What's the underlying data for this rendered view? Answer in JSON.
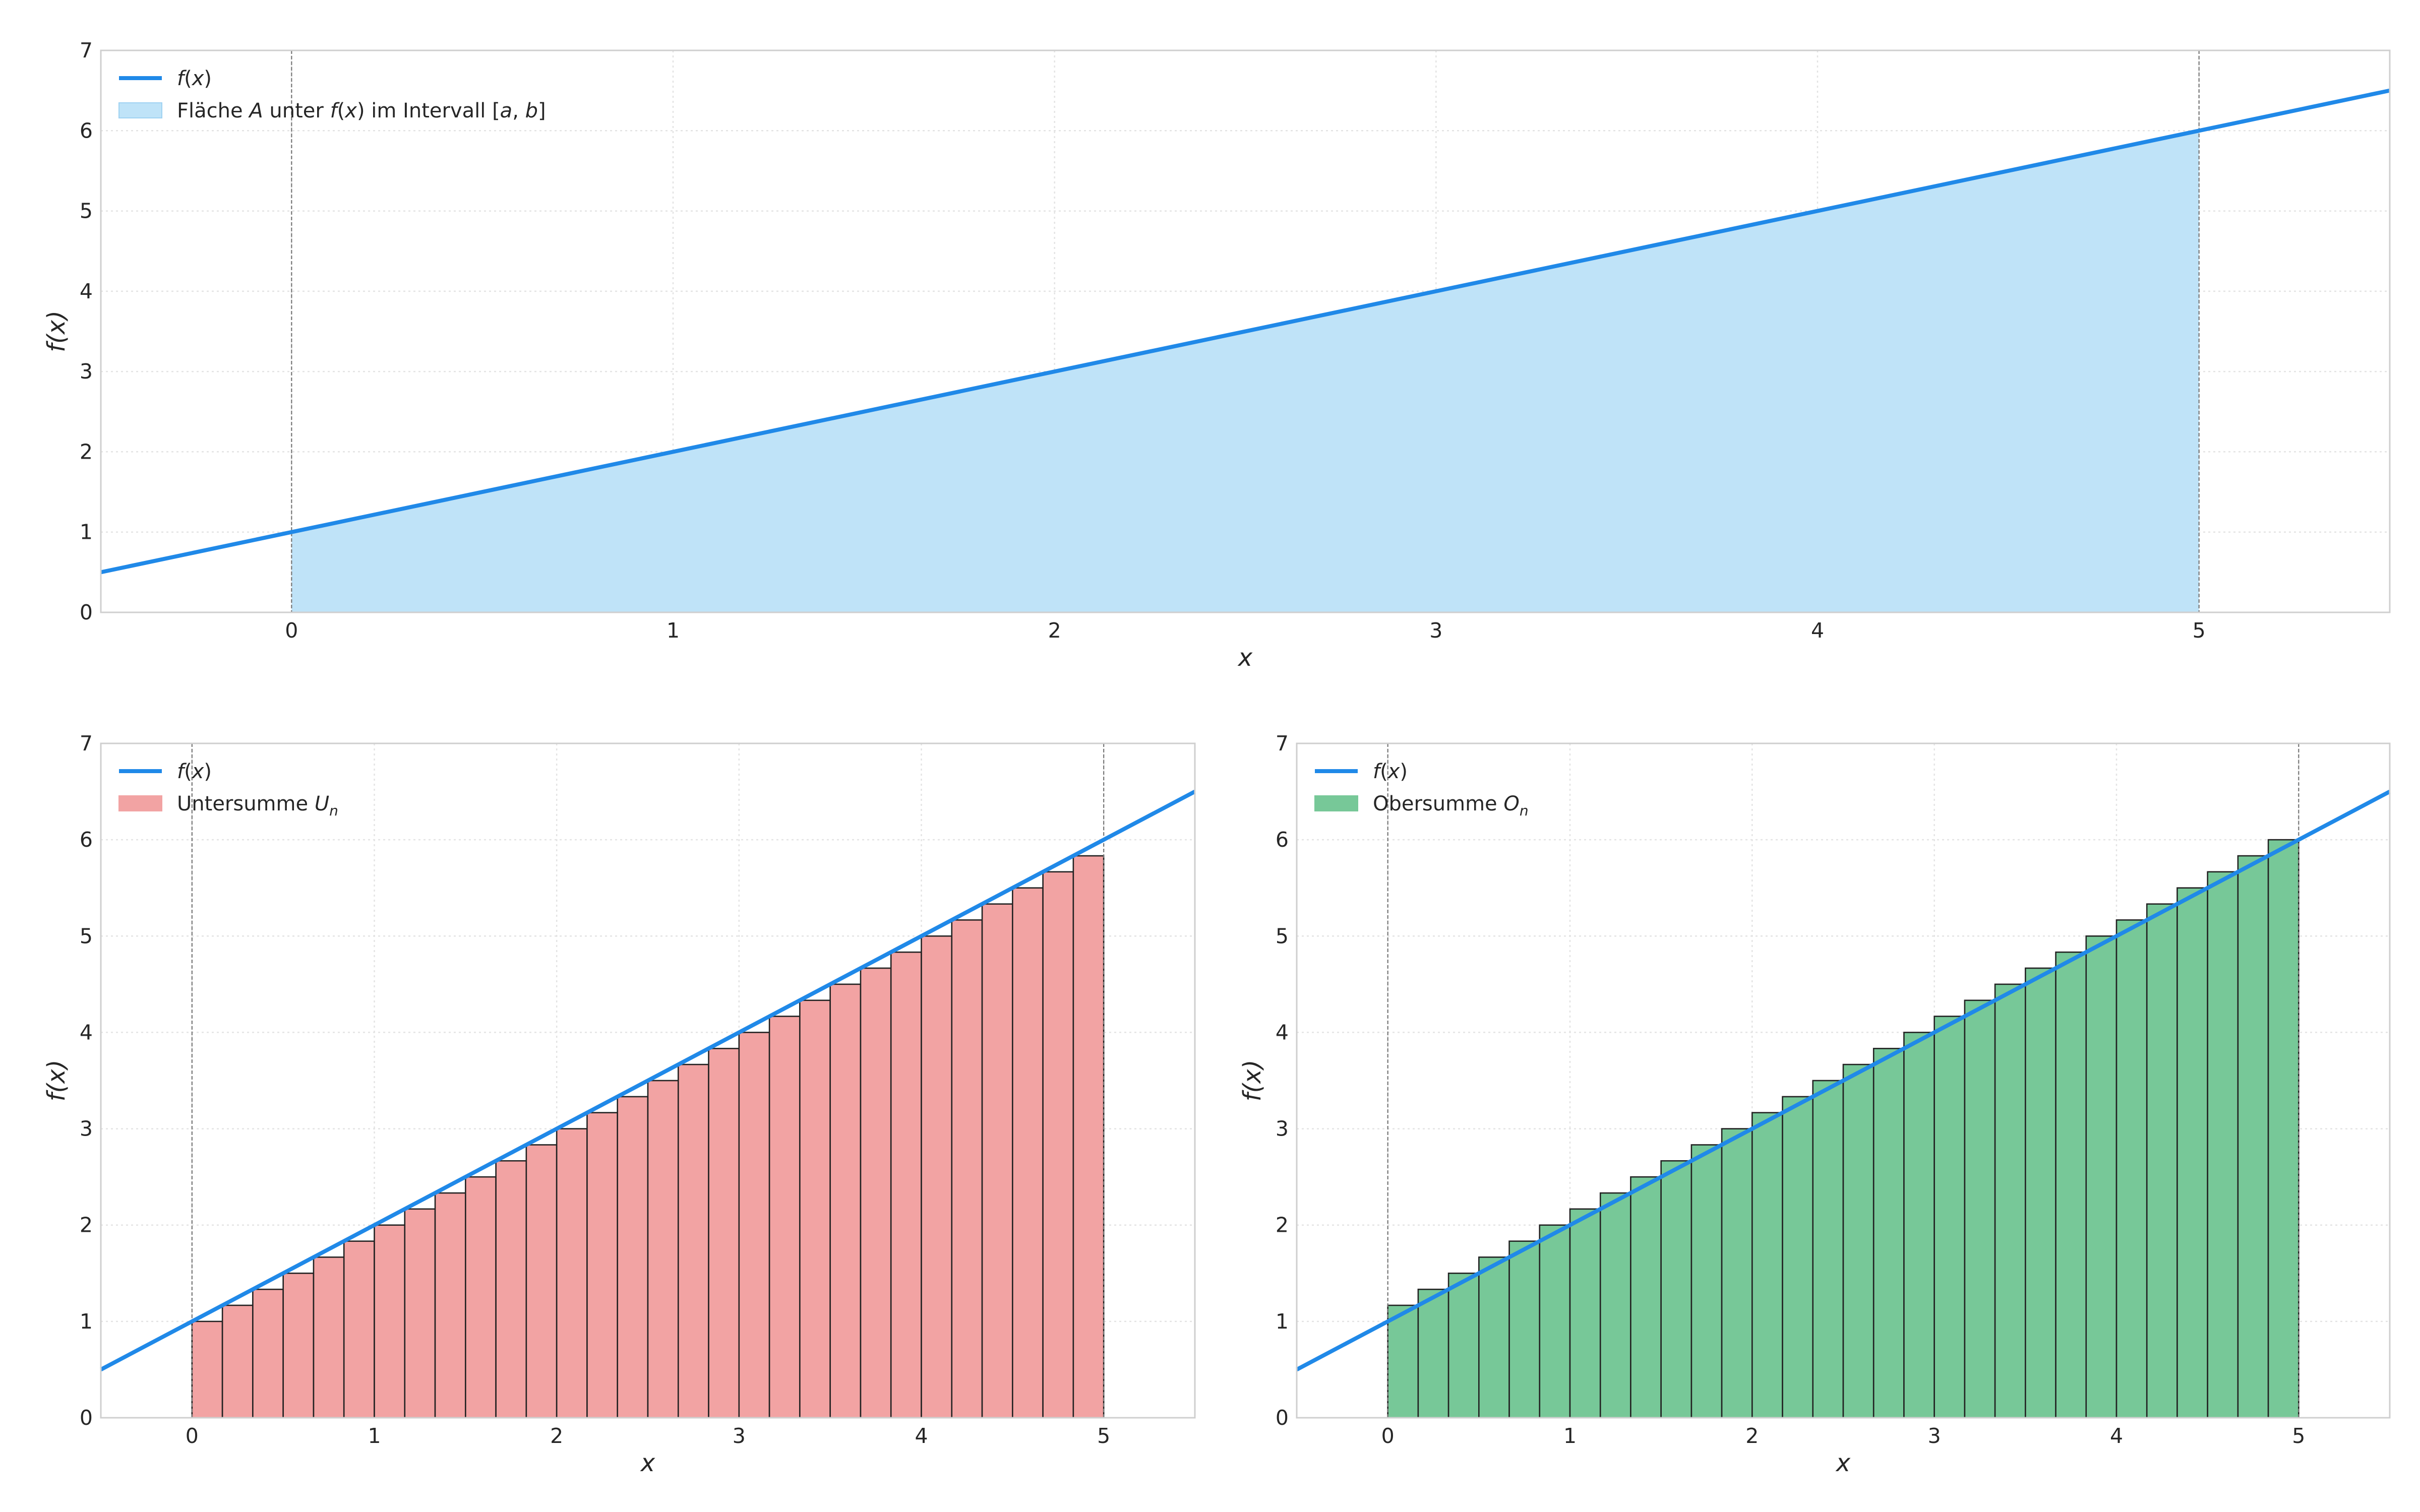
{
  "colors": {
    "line": "#2089e8",
    "area_fill": "#bfe3f8",
    "area_edge": "#9fd2f2",
    "lower_fill": "#f2a3a3",
    "upper_fill": "#77c898",
    "bar_edge": "#222222",
    "grid": "#e3e3e3",
    "frame": "#cfcfcf",
    "vline": "#777777"
  },
  "chart_data": [
    {
      "id": "top",
      "type": "area",
      "function": "f(x) = x + 1",
      "x_range": [
        -0.5,
        5.5
      ],
      "ylim": [
        0,
        7
      ],
      "interval": [
        0,
        5
      ],
      "x_ticks": [
        0,
        1,
        2,
        3,
        4,
        5
      ],
      "y_ticks": [
        0,
        1,
        2,
        3,
        4,
        5,
        6,
        7
      ],
      "grid": true,
      "xlabel": "x",
      "ylabel": "f(x)",
      "legend_position": "top-left",
      "legend": [
        {
          "kind": "line",
          "label_parts": [
            [
              "f",
              "i"
            ],
            [
              "(",
              "n"
            ],
            [
              "x",
              "i"
            ],
            [
              ")",
              "n"
            ]
          ]
        },
        {
          "kind": "area",
          "label_parts": [
            [
              "Fläche ",
              "n"
            ],
            [
              "A",
              "i"
            ],
            [
              " unter ",
              "n"
            ],
            [
              "f",
              "i"
            ],
            [
              "(",
              "n"
            ],
            [
              "x",
              "i"
            ],
            [
              ")",
              "n"
            ],
            [
              " im Intervall [",
              "n"
            ],
            [
              "a",
              "i"
            ],
            [
              ", ",
              "n"
            ],
            [
              "b",
              "i"
            ],
            [
              "]",
              "n"
            ]
          ]
        }
      ]
    },
    {
      "id": "lower",
      "type": "bar",
      "function": "f(x) = x + 1",
      "x_range": [
        -0.5,
        5.5
      ],
      "ylim": [
        0,
        7
      ],
      "interval": [
        0,
        5
      ],
      "n": 30,
      "bar_width": 0.16667,
      "bar_lefts": [
        0,
        0.1667,
        0.3333,
        0.5,
        0.6667,
        0.8333,
        1,
        1.1667,
        1.3333,
        1.5,
        1.6667,
        1.8333,
        2,
        2.1667,
        2.3333,
        2.5,
        2.6667,
        2.8333,
        3,
        3.1667,
        3.3333,
        3.5,
        3.6667,
        3.8333,
        4,
        4.1667,
        4.3333,
        4.5,
        4.6667,
        4.8333
      ],
      "values": [
        1.0,
        1.167,
        1.333,
        1.5,
        1.667,
        1.833,
        2.0,
        2.167,
        2.333,
        2.5,
        2.667,
        2.833,
        3.0,
        3.167,
        3.333,
        3.5,
        3.667,
        3.833,
        4.0,
        4.167,
        4.333,
        4.5,
        4.667,
        4.833,
        5.0,
        5.167,
        5.333,
        5.5,
        5.667,
        5.833
      ],
      "x_ticks": [
        0,
        1,
        2,
        3,
        4,
        5
      ],
      "y_ticks": [
        0,
        1,
        2,
        3,
        4,
        5,
        6,
        7
      ],
      "grid": true,
      "xlabel": "x",
      "ylabel": "f(x)",
      "legend_position": "top-left",
      "legend": [
        {
          "kind": "line",
          "label_parts": [
            [
              "f",
              "i"
            ],
            [
              "(",
              "n"
            ],
            [
              "x",
              "i"
            ],
            [
              ")",
              "n"
            ]
          ]
        },
        {
          "kind": "patch",
          "label_parts": [
            [
              "Untersumme ",
              "n"
            ],
            [
              "U",
              "i"
            ],
            [
              "n",
              "s"
            ]
          ]
        }
      ]
    },
    {
      "id": "upper",
      "type": "bar",
      "function": "f(x) = x + 1",
      "x_range": [
        -0.5,
        5.5
      ],
      "ylim": [
        0,
        7
      ],
      "interval": [
        0,
        5
      ],
      "n": 30,
      "bar_width": 0.16667,
      "bar_lefts": [
        0,
        0.1667,
        0.3333,
        0.5,
        0.6667,
        0.8333,
        1,
        1.1667,
        1.3333,
        1.5,
        1.6667,
        1.8333,
        2,
        2.1667,
        2.3333,
        2.5,
        2.6667,
        2.8333,
        3,
        3.1667,
        3.3333,
        3.5,
        3.6667,
        3.8333,
        4,
        4.1667,
        4.3333,
        4.5,
        4.6667,
        4.8333
      ],
      "values": [
        1.167,
        1.333,
        1.5,
        1.667,
        1.833,
        2.0,
        2.167,
        2.333,
        2.5,
        2.667,
        2.833,
        3.0,
        3.167,
        3.333,
        3.5,
        3.667,
        3.833,
        4.0,
        4.167,
        4.333,
        4.5,
        4.667,
        4.833,
        5.0,
        5.167,
        5.333,
        5.5,
        5.667,
        5.833,
        6.0
      ],
      "x_ticks": [
        0,
        1,
        2,
        3,
        4,
        5
      ],
      "y_ticks": [
        0,
        1,
        2,
        3,
        4,
        5,
        6,
        7
      ],
      "grid": true,
      "xlabel": "x",
      "ylabel": "f(x)",
      "legend_position": "top-left",
      "legend": [
        {
          "kind": "line",
          "label_parts": [
            [
              "f",
              "i"
            ],
            [
              "(",
              "n"
            ],
            [
              "x",
              "i"
            ],
            [
              ")",
              "n"
            ]
          ]
        },
        {
          "kind": "patch",
          "label_parts": [
            [
              "Obersumme ",
              "n"
            ],
            [
              "O",
              "i"
            ],
            [
              "n",
              "s"
            ]
          ]
        }
      ]
    }
  ]
}
